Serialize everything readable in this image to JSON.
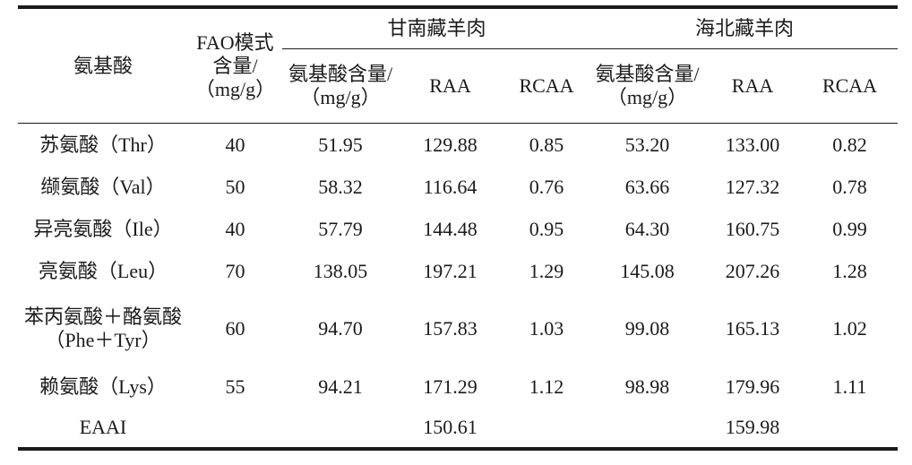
{
  "table": {
    "header": {
      "amino_acid": "氨基酸",
      "fao_line1": "FAO模式",
      "fao_line2": "含量/",
      "fao_line3": "（mg/g）",
      "group1": "甘南藏羊肉",
      "group2": "海北藏羊肉",
      "content_line1": "氨基酸含量/",
      "content_line2": "（mg/g）",
      "raa": "RAA",
      "rcaa": "RCAA"
    },
    "rows": [
      {
        "name": "苏氨酸（Thr）",
        "fao": "40",
        "g_content": "51.95",
        "g_raa": "129.88",
        "g_rcaa": "0.85",
        "h_content": "53.20",
        "h_raa": "133.00",
        "h_rcaa": "0.82"
      },
      {
        "name": "缬氨酸（Val）",
        "fao": "50",
        "g_content": "58.32",
        "g_raa": "116.64",
        "g_rcaa": "0.76",
        "h_content": "63.66",
        "h_raa": "127.32",
        "h_rcaa": "0.78"
      },
      {
        "name": "异亮氨酸（Ile）",
        "fao": "40",
        "g_content": "57.79",
        "g_raa": "144.48",
        "g_rcaa": "0.95",
        "h_content": "64.30",
        "h_raa": "160.75",
        "h_rcaa": "0.99"
      },
      {
        "name": "亮氨酸（Leu）",
        "fao": "70",
        "g_content": "138.05",
        "g_raa": "197.21",
        "g_rcaa": "1.29",
        "h_content": "145.08",
        "h_raa": "207.26",
        "h_rcaa": "1.28"
      },
      {
        "name_line1": "苯丙氨酸＋酪氨酸",
        "name_line2": "（Phe＋Tyr）",
        "fao": "60",
        "g_content": "94.70",
        "g_raa": "157.83",
        "g_rcaa": "1.03",
        "h_content": "99.08",
        "h_raa": "165.13",
        "h_rcaa": "1.02"
      },
      {
        "name": "赖氨酸（Lys）",
        "fao": "55",
        "g_content": "94.21",
        "g_raa": "171.29",
        "g_rcaa": "1.12",
        "h_content": "98.98",
        "h_raa": "179.96",
        "h_rcaa": "1.11"
      }
    ],
    "eaai": {
      "label": "EAAI",
      "gannan": "150.61",
      "haibei": "159.98"
    }
  }
}
